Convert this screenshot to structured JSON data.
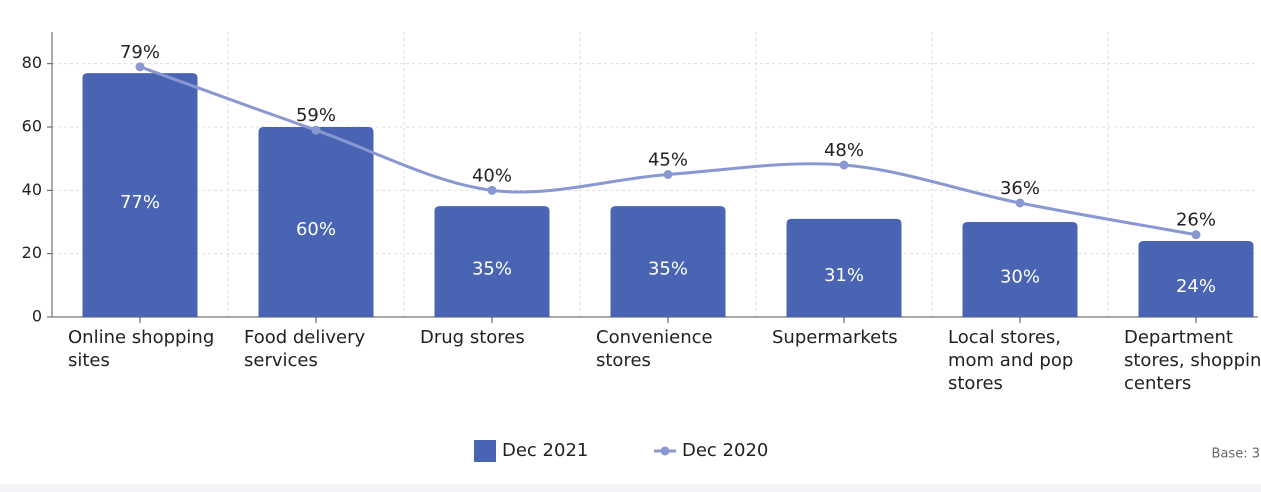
{
  "chart_data": {
    "type": "bar_line",
    "categories": [
      "Online shopping sites",
      "Food delivery services",
      "Drug stores",
      "Convenience stores",
      "Supermarkets",
      "Local stores, mom and pop stores",
      "Department stores, shopping centers"
    ],
    "series": [
      {
        "name": "Dec 2021",
        "color": "#4a64b4",
        "type": "bar",
        "values": [
          77,
          60,
          35,
          35,
          31,
          30,
          24
        ],
        "value_labels": [
          "77%",
          "60%",
          "35%",
          "35%",
          "31%",
          "30%",
          "24%"
        ]
      },
      {
        "name": "Dec 2020",
        "color": "#8a98d2",
        "type": "line",
        "values": [
          79,
          59,
          40,
          45,
          48,
          36,
          26
        ],
        "value_labels": [
          "79%",
          "59%",
          "40%",
          "45%",
          "48%",
          "36%",
          "26%"
        ]
      }
    ],
    "ylim": [
      0,
      90
    ],
    "yticks": [
      0,
      20,
      40,
      60,
      80
    ],
    "grid": true,
    "legend": "bottom",
    "note": "Base: 3"
  }
}
